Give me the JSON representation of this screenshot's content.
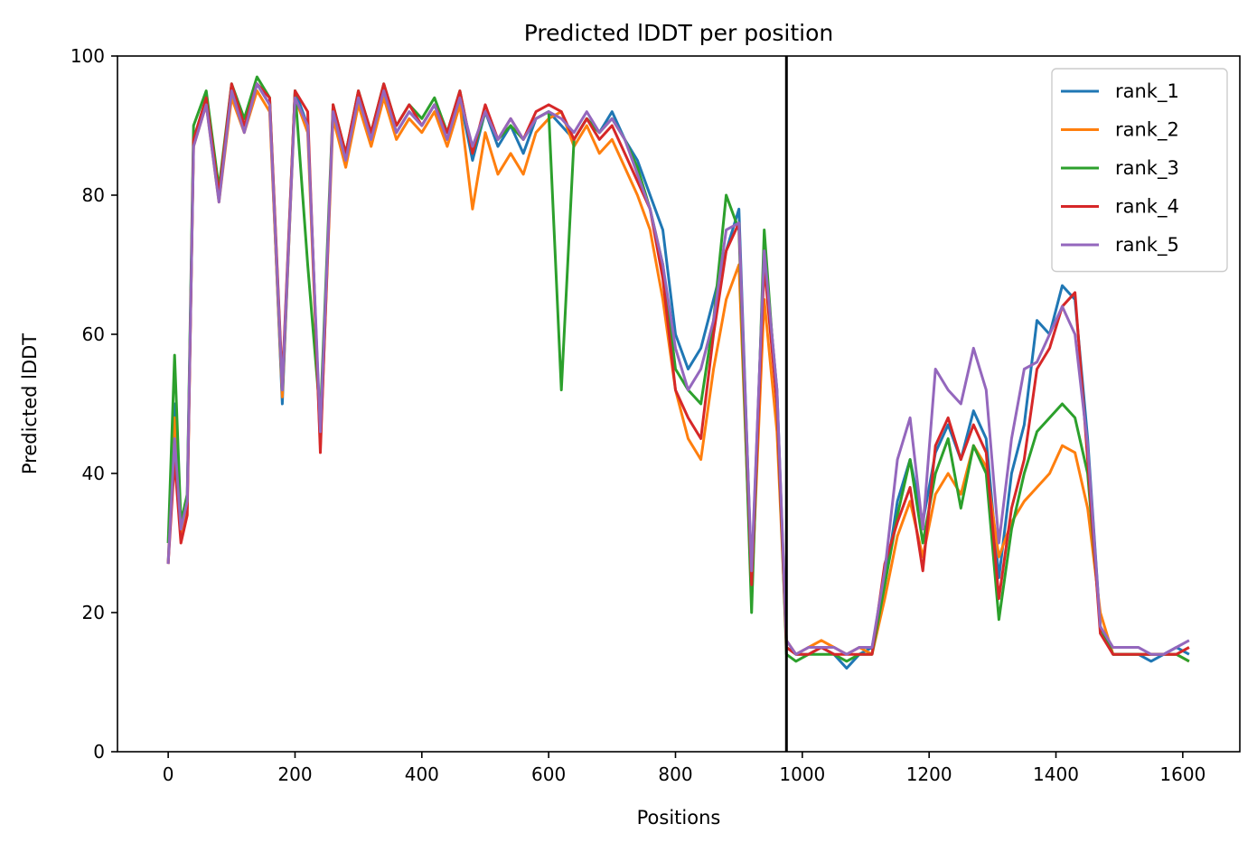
{
  "chart_data": {
    "type": "line",
    "title": "Predicted lDDT per position",
    "xlabel": "Positions",
    "ylabel": "Predicted lDDT",
    "xlim": [
      -80,
      1690
    ],
    "ylim": [
      0,
      100
    ],
    "x_ticks": [
      0,
      200,
      400,
      600,
      800,
      1000,
      1200,
      1400,
      1600
    ],
    "y_ticks": [
      0,
      20,
      40,
      60,
      80,
      100
    ],
    "x_tick_labels": [
      "0",
      "200",
      "400",
      "600",
      "800",
      "1000",
      "1200",
      "1400",
      "1600"
    ],
    "y_tick_labels": [
      "0",
      "20",
      "40",
      "60",
      "80",
      "100"
    ],
    "grid": false,
    "legend_position": "top-right",
    "chain_break": 975,
    "x": [
      0,
      10,
      20,
      30,
      40,
      60,
      80,
      100,
      120,
      140,
      160,
      180,
      200,
      220,
      240,
      260,
      280,
      300,
      320,
      340,
      360,
      380,
      400,
      420,
      440,
      460,
      480,
      500,
      520,
      540,
      560,
      580,
      600,
      620,
      640,
      660,
      680,
      700,
      720,
      740,
      760,
      780,
      800,
      820,
      840,
      860,
      880,
      900,
      920,
      940,
      960,
      975,
      990,
      1010,
      1030,
      1050,
      1070,
      1090,
      1110,
      1130,
      1150,
      1170,
      1190,
      1210,
      1230,
      1250,
      1270,
      1290,
      1310,
      1330,
      1350,
      1370,
      1390,
      1410,
      1430,
      1450,
      1470,
      1490,
      1510,
      1530,
      1550,
      1570,
      1590,
      1610
    ],
    "series": [
      {
        "name": "rank_1",
        "color": "#1f77b4",
        "values": [
          27,
          50,
          32,
          36,
          88,
          94,
          80,
          95,
          90,
          96,
          93,
          50,
          95,
          90,
          45,
          92,
          85,
          94,
          88,
          95,
          89,
          92,
          90,
          93,
          88,
          94,
          85,
          92,
          87,
          90,
          86,
          91,
          92,
          90,
          88,
          91,
          89,
          92,
          88,
          85,
          80,
          75,
          60,
          55,
          58,
          65,
          72,
          78,
          25,
          72,
          52,
          15,
          14,
          14,
          15,
          14,
          12,
          14,
          15,
          24,
          36,
          42,
          33,
          43,
          47,
          42,
          49,
          45,
          25,
          40,
          47,
          62,
          60,
          67,
          65,
          45,
          18,
          14,
          14,
          14,
          13,
          14,
          15,
          14
        ]
      },
      {
        "name": "rank_2",
        "color": "#ff7f0e",
        "values": [
          27,
          48,
          31,
          35,
          87,
          93,
          79,
          94,
          89,
          95,
          92,
          51,
          94,
          89,
          44,
          91,
          84,
          93,
          87,
          94,
          88,
          91,
          89,
          92,
          87,
          93,
          78,
          89,
          83,
          86,
          83,
          89,
          91,
          92,
          87,
          90,
          86,
          88,
          84,
          80,
          75,
          65,
          52,
          45,
          42,
          55,
          65,
          70,
          23,
          65,
          46,
          16,
          14,
          15,
          16,
          15,
          14,
          15,
          14,
          22,
          31,
          36,
          28,
          37,
          40,
          37,
          44,
          41,
          28,
          33,
          36,
          38,
          40,
          44,
          43,
          35,
          20,
          14,
          14,
          14,
          14,
          14,
          14,
          13
        ]
      },
      {
        "name": "rank_3",
        "color": "#2ca02c",
        "values": [
          30,
          57,
          33,
          37,
          90,
          95,
          81,
          96,
          91,
          97,
          94,
          52,
          95,
          70,
          48,
          93,
          86,
          95,
          89,
          96,
          90,
          93,
          91,
          94,
          89,
          95,
          86,
          92,
          88,
          90,
          88,
          91,
          92,
          52,
          88,
          91,
          89,
          91,
          88,
          84,
          78,
          70,
          55,
          52,
          50,
          62,
          80,
          75,
          20,
          75,
          50,
          14,
          13,
          14,
          14,
          14,
          13,
          14,
          14,
          24,
          34,
          42,
          30,
          40,
          45,
          35,
          44,
          40,
          19,
          32,
          40,
          46,
          48,
          50,
          48,
          40,
          18,
          14,
          14,
          14,
          14,
          14,
          14,
          13
        ]
      },
      {
        "name": "rank_4",
        "color": "#d62728",
        "values": [
          27,
          42,
          30,
          34,
          88,
          94,
          80,
          96,
          90,
          96,
          94,
          53,
          95,
          92,
          43,
          93,
          86,
          95,
          89,
          96,
          90,
          93,
          90,
          93,
          89,
          95,
          86,
          93,
          88,
          91,
          88,
          92,
          93,
          92,
          88,
          91,
          88,
          90,
          86,
          82,
          78,
          68,
          52,
          48,
          45,
          60,
          72,
          76,
          24,
          70,
          50,
          15,
          14,
          14,
          15,
          14,
          14,
          14,
          14,
          27,
          33,
          38,
          26,
          44,
          48,
          42,
          47,
          43,
          22,
          35,
          42,
          55,
          58,
          64,
          66,
          42,
          17,
          14,
          14,
          14,
          14,
          14,
          14,
          15
        ]
      },
      {
        "name": "rank_5",
        "color": "#9467bd",
        "values": [
          27,
          45,
          32,
          36,
          87,
          93,
          79,
          95,
          89,
          96,
          93,
          52,
          94,
          90,
          46,
          92,
          85,
          94,
          88,
          95,
          89,
          92,
          90,
          93,
          88,
          94,
          87,
          92,
          88,
          91,
          88,
          91,
          92,
          91,
          89,
          92,
          89,
          91,
          88,
          83,
          78,
          70,
          58,
          52,
          55,
          62,
          75,
          76,
          26,
          72,
          52,
          16,
          14,
          15,
          15,
          15,
          14,
          15,
          15,
          26,
          42,
          48,
          32,
          55,
          52,
          50,
          58,
          52,
          30,
          45,
          55,
          56,
          60,
          64,
          60,
          44,
          18,
          15,
          15,
          15,
          14,
          14,
          15,
          16
        ]
      }
    ]
  }
}
